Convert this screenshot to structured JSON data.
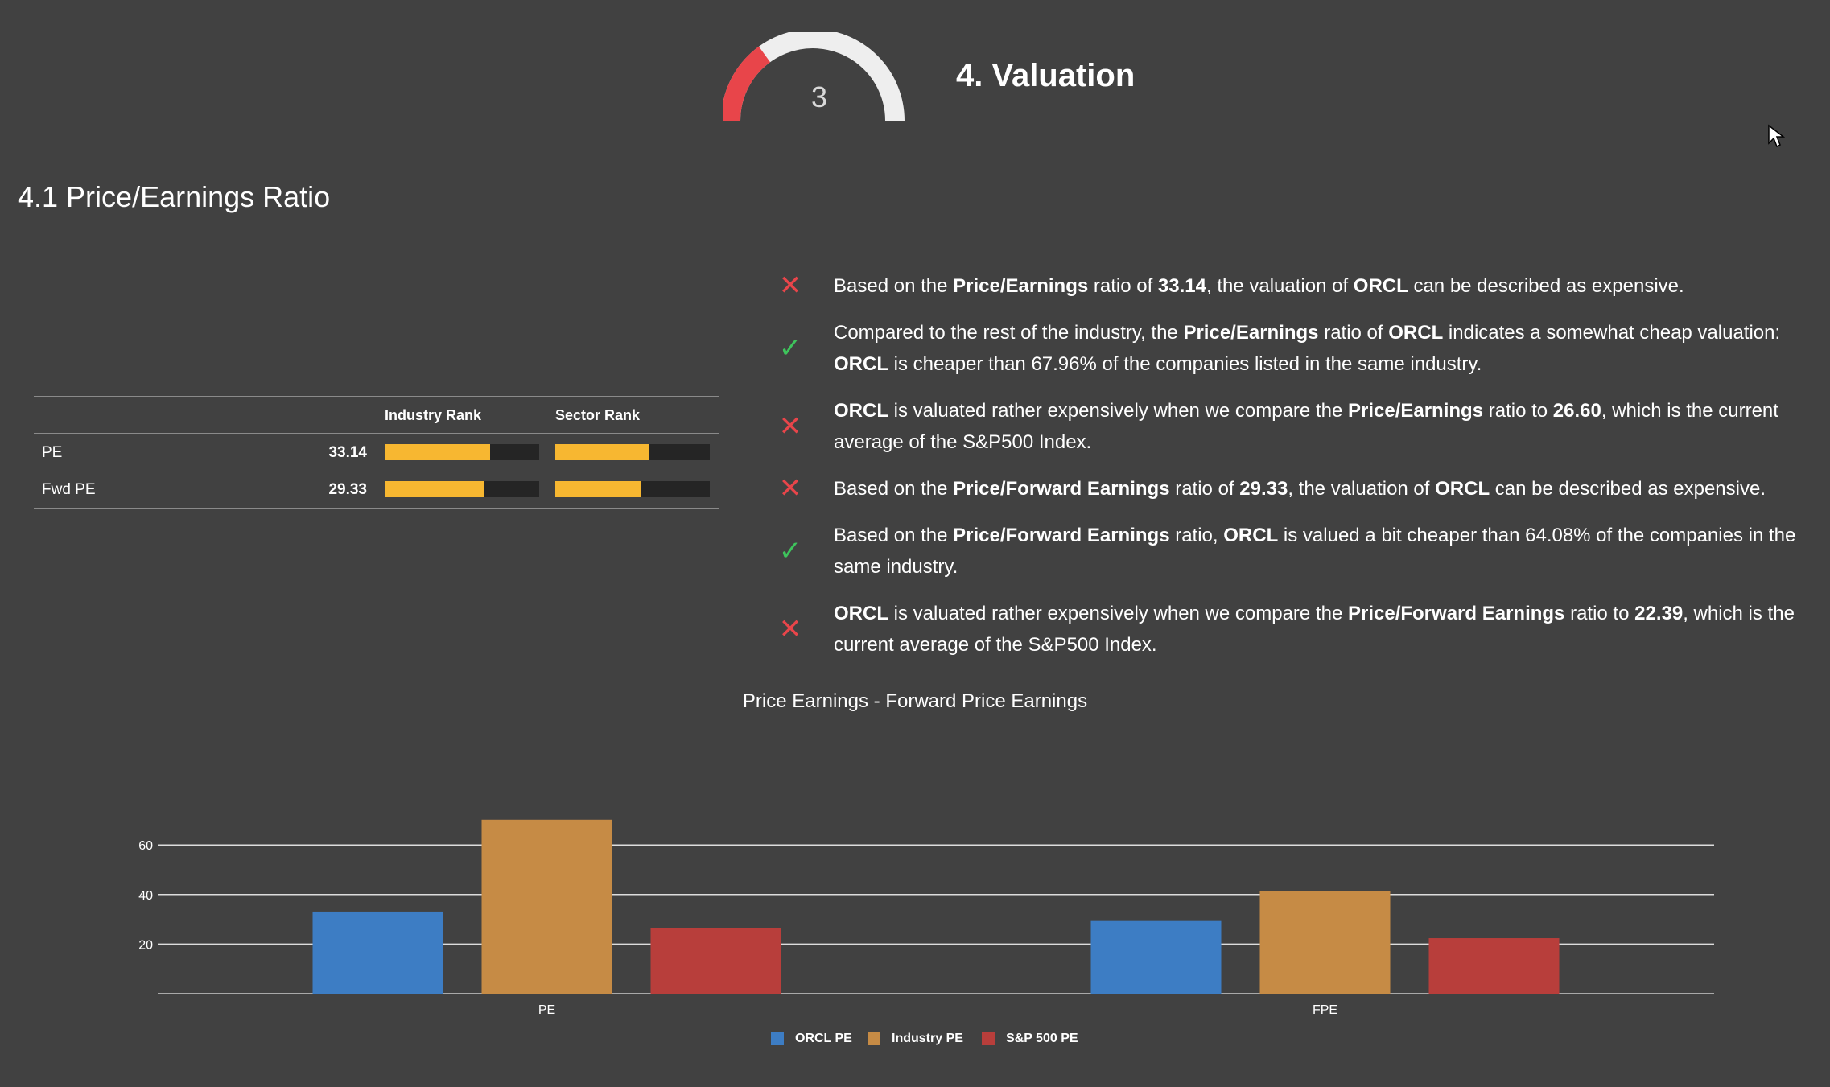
{
  "header": {
    "gauge_value": "3",
    "gauge_score_fraction": 0.3,
    "title": "4. Valuation",
    "subtitle": "4.1 Price/Earnings Ratio"
  },
  "rank_table": {
    "col_industry": "Industry Rank",
    "col_sector": "Sector Rank",
    "rows": [
      {
        "label": "PE",
        "value": "33.14",
        "industry_rank": 0.68,
        "sector_rank": 0.61
      },
      {
        "label": "Fwd PE",
        "value": "29.33",
        "industry_rank": 0.64,
        "sector_rank": 0.55
      }
    ]
  },
  "checklist": [
    {
      "status": "bad",
      "html": "Based on the <b>Price/Earnings</b> ratio of <b>33.14</b>, the valuation of <b>ORCL</b> can be described as expensive."
    },
    {
      "status": "good",
      "html": "Compared to the rest of the industry, the <b>Price/Earnings</b> ratio of <b>ORCL</b> indicates a somewhat cheap valuation: <b>ORCL</b> is cheaper than 67.96% of the companies listed in the same industry."
    },
    {
      "status": "bad",
      "html": "<b>ORCL</b> is valuated rather expensively when we compare the <b>Price/Earnings</b> ratio to <b>26.60</b>, which is the current average of the S&amp;P500 Index."
    },
    {
      "status": "bad",
      "html": "Based on the <b>Price/Forward Earnings</b> ratio of <b>29.33</b>, the valuation of <b>ORCL</b> can be described as expensive."
    },
    {
      "status": "good",
      "html": "Based on the <b>Price/Forward Earnings</b> ratio, <b>ORCL</b> is valued a bit cheaper than 64.08% of the companies in the same industry."
    },
    {
      "status": "bad",
      "html": "<b>ORCL</b> is valuated rather expensively when we compare the <b>Price/Forward Earnings</b> ratio to <b>22.39</b>, which is the current average of the S&amp;P500 Index."
    }
  ],
  "colors": {
    "background": "#414141",
    "bar_fill": "#f7b731",
    "bad": "#e8454a",
    "good": "#3ec45c",
    "gauge_track": "#eeeeee",
    "gauge_fill": "#e8454a"
  },
  "chart_data": {
    "type": "bar",
    "title": "Price Earnings - Forward Price Earnings",
    "categories": [
      "PE",
      "FPE"
    ],
    "series": [
      {
        "name": "ORCL PE",
        "color": "#3d7dc4",
        "values": [
          33.14,
          29.33
        ]
      },
      {
        "name": "Industry PE",
        "color": "#c68b45",
        "values": [
          70.2,
          41.3
        ]
      },
      {
        "name": "S&P 500 PE",
        "color": "#b83e3b",
        "values": [
          26.6,
          22.39
        ]
      }
    ],
    "yticks": [
      20,
      40,
      60
    ],
    "ylim": [
      0,
      70
    ],
    "xlabel": "",
    "ylabel": "",
    "legend": "bottom"
  }
}
